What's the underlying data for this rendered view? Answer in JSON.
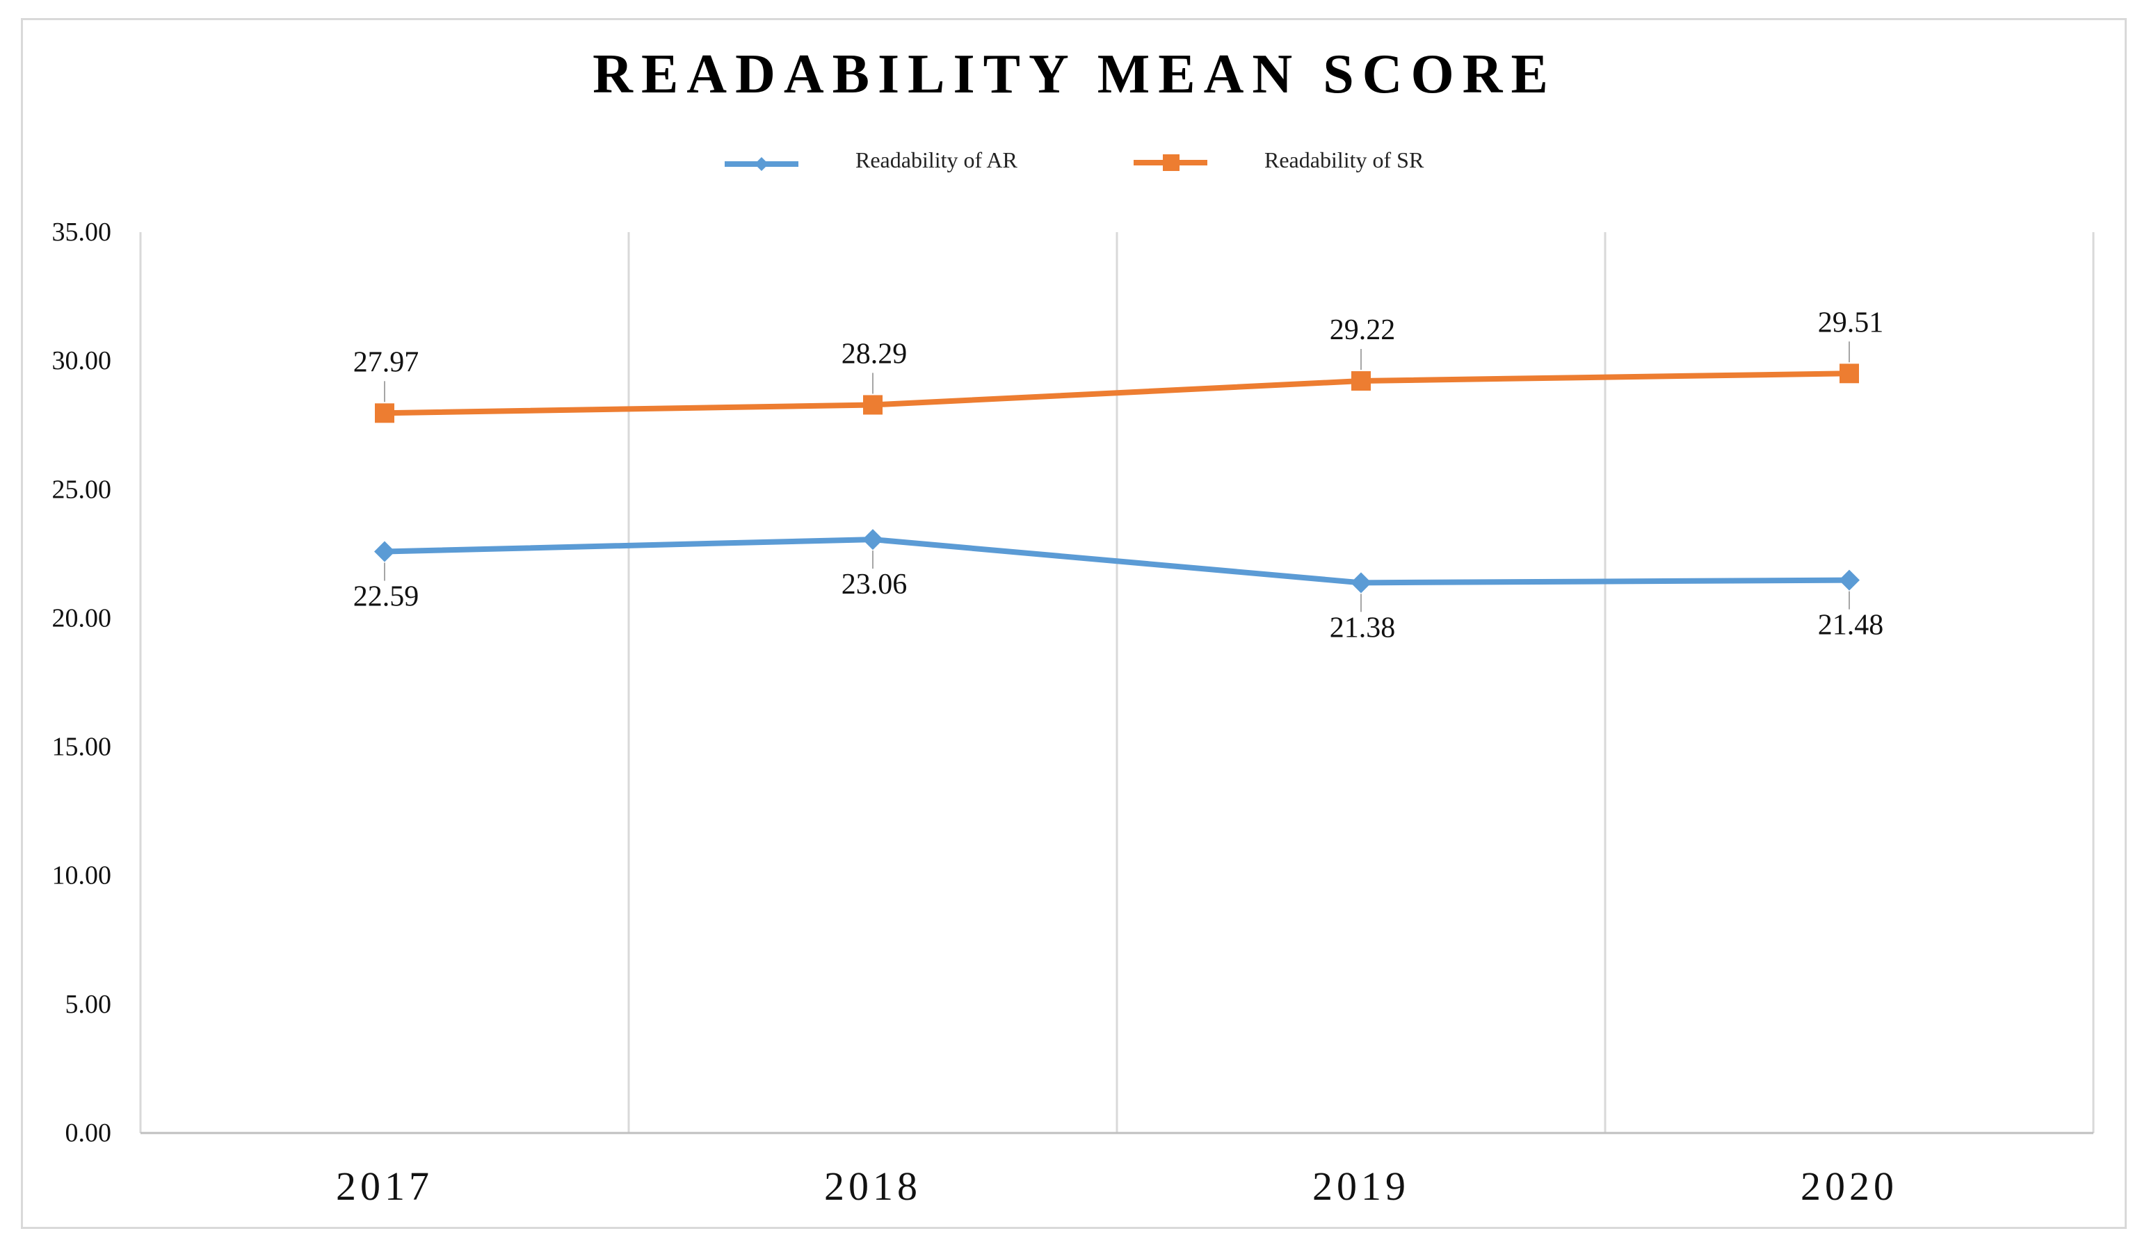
{
  "chart_data": {
    "type": "line",
    "title": "READABILITY MEAN SCORE",
    "categories": [
      "2017",
      "2018",
      "2019",
      "2020"
    ],
    "series": [
      {
        "name": "Readability of AR",
        "values": [
          22.59,
          23.06,
          21.38,
          21.48
        ],
        "color": "#5b9bd5",
        "marker": "diamond"
      },
      {
        "name": "Readability of SR",
        "values": [
          27.97,
          28.29,
          29.22,
          29.51
        ],
        "color": "#ed7d31",
        "marker": "square"
      }
    ],
    "y_ticks": [
      "0.00",
      "5.00",
      "10.00",
      "15.00",
      "20.00",
      "25.00",
      "30.00",
      "35.00"
    ],
    "ylim": [
      0,
      35
    ],
    "xlabel": "",
    "ylabel": "",
    "legend": "top-center",
    "grid": "vertical"
  }
}
